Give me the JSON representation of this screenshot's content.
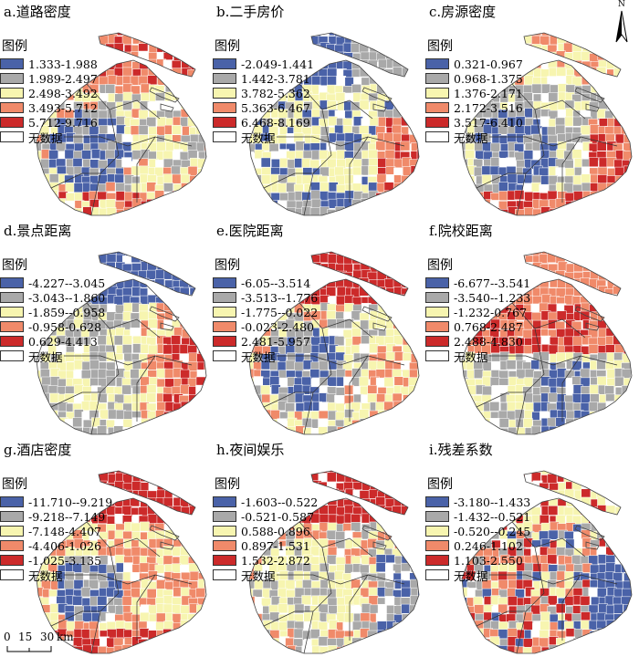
{
  "legend_title": "图例",
  "colors": {
    "blue": "#4a62a8",
    "gray": "#a9a9a9",
    "yellow": "#f7f5b0",
    "orange": "#f08a6a",
    "red": "#cc2a2a",
    "nodata": "#ffffff"
  },
  "panels": [
    {
      "title": "a.道路密度",
      "classes": [
        "1.333-1.988",
        "1.989-2.497",
        "2.498-3.492",
        "3.493-5.712",
        "5.712-9.716"
      ],
      "nodata": "无数据",
      "pattern": "a"
    },
    {
      "title": "b.二手房价",
      "classes": [
        "-2.049-1.441",
        "1.442-3.781",
        "3.782-5.362",
        "5.363-6.467",
        "6.468-8.169"
      ],
      "nodata": "无数据",
      "pattern": "b"
    },
    {
      "title": "c.房源密度",
      "classes": [
        "0.321-0.967",
        "0.968-1.375",
        "1.376-2.171",
        "2.172-3.516",
        "3.517-6.410"
      ],
      "nodata": "无数据",
      "pattern": "c"
    },
    {
      "title": "d.景点距离",
      "classes": [
        "-4.227--3.045",
        "-3.043--1.860",
        "-1.859--0.958",
        "-0.958-0.628",
        "0.629-4.413"
      ],
      "nodata": "无数据",
      "pattern": "d"
    },
    {
      "title": "e.医院距离",
      "classes": [
        "-6.05--3.514",
        "-3.513--1.776",
        "-1.775--0.022",
        "-0.023-2.480",
        "2.481-5.957"
      ],
      "nodata": "无数据",
      "pattern": "e"
    },
    {
      "title": "f.院校距离",
      "classes": [
        "-6.677--3.541",
        "-3.540--1.233",
        "-1.232-0.767",
        "0.768-2.487",
        "2.488-4.830"
      ],
      "nodata": "无数据",
      "pattern": "f"
    },
    {
      "title": "g.酒店密度",
      "classes": [
        "-11.710--9.219",
        "-9.218--7.149",
        "-7.148-4.407",
        "-4.406-1.026",
        "-1.025-3.135"
      ],
      "nodata": "无数据",
      "pattern": "g"
    },
    {
      "title": "h.夜间娱乐",
      "classes": [
        "-1.603--0.522",
        "-0.521-0.587",
        "0.588-0.896",
        "0.897-1.531",
        "1.532-2.872"
      ],
      "nodata": "无数据",
      "pattern": "h"
    },
    {
      "title": "i.残差系数",
      "classes": [
        "-3.180--1.433",
        "-1.432--0.521",
        "-0.520--0.245",
        "0.246-1.102",
        "1.103-2.550"
      ],
      "nodata": "无数据",
      "pattern": "i"
    }
  ],
  "north_label": "N",
  "scale": {
    "ticks": [
      "0",
      "15",
      "30"
    ],
    "unit": "km"
  }
}
